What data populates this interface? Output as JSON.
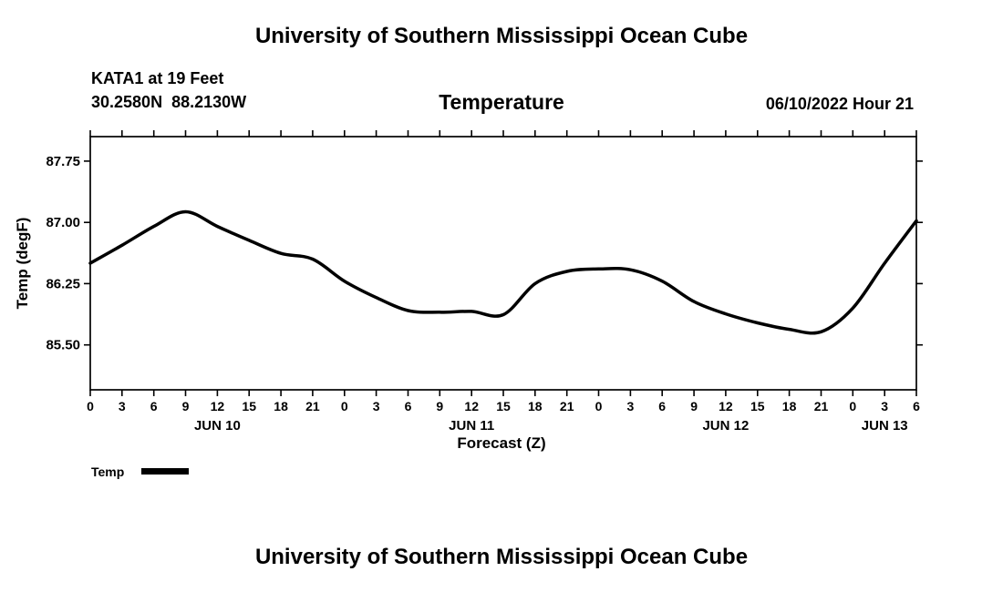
{
  "page": {
    "top_title": "University of Southern Mississippi Ocean Cube",
    "bottom_title": "University of Southern Mississippi Ocean Cube"
  },
  "header": {
    "station_line1": "KATA1 at 19 Feet",
    "station_line2": "30.2580N  88.2130W",
    "chart_title": "Temperature",
    "timestamp": "06/10/2022 Hour 21"
  },
  "legend": {
    "label": "Temp"
  },
  "chart_data": {
    "type": "line",
    "title": "Temperature",
    "xlabel": "Forecast (Z)",
    "ylabel": "Temp (degF)",
    "x_hours": [
      0,
      3,
      6,
      9,
      12,
      15,
      18,
      21,
      24,
      27,
      30,
      33,
      36,
      39,
      42,
      45,
      48,
      51,
      54,
      57,
      60,
      63,
      66,
      69,
      72,
      75,
      78
    ],
    "values": [
      86.5,
      86.72,
      86.95,
      87.13,
      86.95,
      86.78,
      86.62,
      86.55,
      86.28,
      86.08,
      85.92,
      85.9,
      85.91,
      85.87,
      86.25,
      86.4,
      86.43,
      86.42,
      86.28,
      86.03,
      85.88,
      85.77,
      85.69,
      85.66,
      85.95,
      86.5,
      87.02
    ],
    "series_name": "Temp",
    "y_ticks": [
      85.5,
      86.25,
      87.0,
      87.75
    ],
    "ylim": [
      84.95,
      88.05
    ],
    "xlim": [
      0,
      78
    ],
    "x_tick_step": 3,
    "x_tick_label_mod": 24,
    "day_labels": [
      {
        "label": "JUN 10",
        "hour": 12
      },
      {
        "label": "JUN 11",
        "hour": 36
      },
      {
        "label": "JUN 12",
        "hour": 60
      },
      {
        "label": "JUN 13",
        "hour": 75
      }
    ],
    "grid": false,
    "legend_position": "bottom-left",
    "line_color": "#000000",
    "axis_color": "#000000"
  }
}
